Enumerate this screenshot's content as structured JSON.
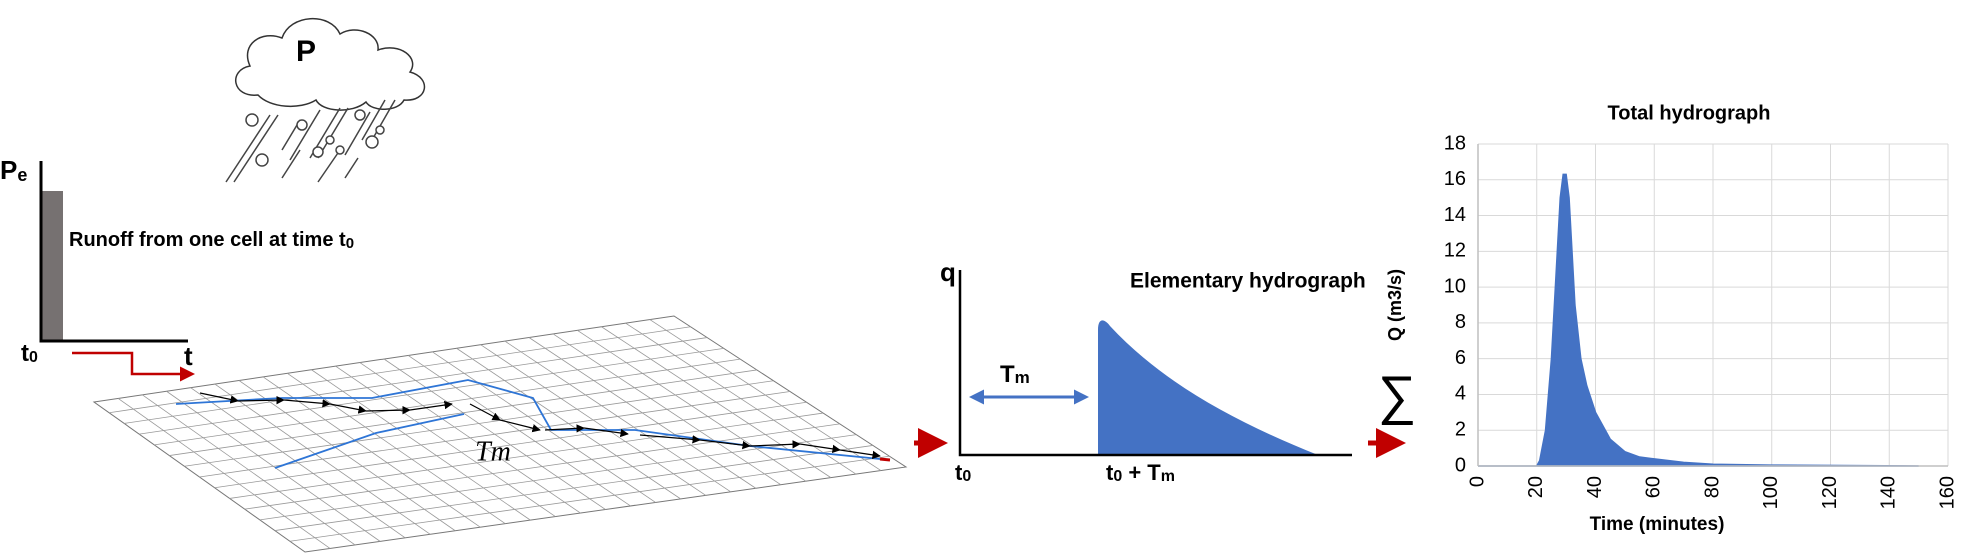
{
  "cloud_label": "P",
  "rain_chart": {
    "y_label": [
      "P",
      "e"
    ],
    "caption": [
      "Runoff from one cell at time t",
      "0"
    ],
    "x_start": [
      "t",
      "0"
    ],
    "x_end": "t"
  },
  "grid_label": "Tm",
  "elementary": {
    "title": "Elementary hydrograph",
    "y_label": "q",
    "delay": [
      "T",
      "m"
    ],
    "x_start": [
      "t",
      "0"
    ],
    "x_peak": [
      "t",
      "0",
      " + T",
      "m"
    ]
  },
  "sum_symbol": "∑",
  "chart_data": {
    "type": "area",
    "title": "Total hydrograph",
    "x_label": "Time (minutes)",
    "y_label": "Q (m3/s)",
    "x": [
      0,
      20,
      21,
      23,
      25,
      27,
      28,
      29,
      30,
      31,
      32,
      33,
      35,
      37,
      40,
      45,
      50,
      55,
      60,
      65,
      70,
      80,
      100,
      150
    ],
    "values": [
      0,
      0,
      0.3,
      2,
      6,
      12,
      15,
      16.3,
      16.3,
      15,
      12,
      9,
      6,
      4.5,
      3,
      1.5,
      0.8,
      0.5,
      0.4,
      0.3,
      0.2,
      0.1,
      0.05,
      0
    ],
    "color": "#4472c4",
    "xlim": [
      0,
      160
    ],
    "ylim": [
      0,
      18
    ],
    "xticks": [
      0,
      20,
      40,
      60,
      80,
      100,
      120,
      140,
      160
    ],
    "yticks": [
      0,
      2,
      4,
      6,
      8,
      10,
      12,
      14,
      16,
      18
    ],
    "grid": true
  }
}
